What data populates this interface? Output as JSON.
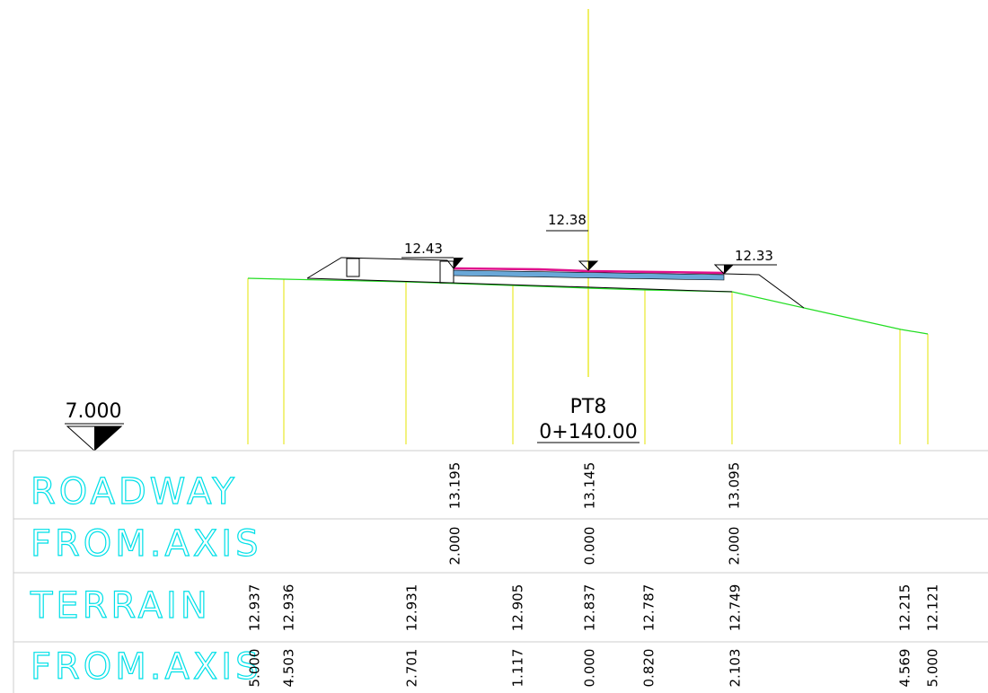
{
  "markers": {
    "left": "12.43",
    "axis": "12.38",
    "right": "12.33"
  },
  "datum": "7.000",
  "station": {
    "name": "PT8",
    "chainage": "0+140.00"
  },
  "table": {
    "roadway": {
      "label": "ROADWAY",
      "elevations": [
        "13.195",
        "13.145",
        "13.095"
      ]
    },
    "roadway_axis": {
      "label": "FROM.AXIS",
      "offsets": [
        "2.000",
        "0.000",
        "2.000"
      ]
    },
    "terrain": {
      "label": "TERRAIN",
      "elevations": [
        "12.937",
        "12.936",
        "12.931",
        "12.905",
        "12.837",
        "12.787",
        "12.749",
        "12.215",
        "12.121"
      ]
    },
    "terrain_axis": {
      "label": "FROM.AXIS",
      "offsets": [
        "5.000",
        "4.503",
        "2.701",
        "1.117",
        "0.000",
        "0.820",
        "2.103",
        "4.569",
        "5.000"
      ]
    }
  }
}
